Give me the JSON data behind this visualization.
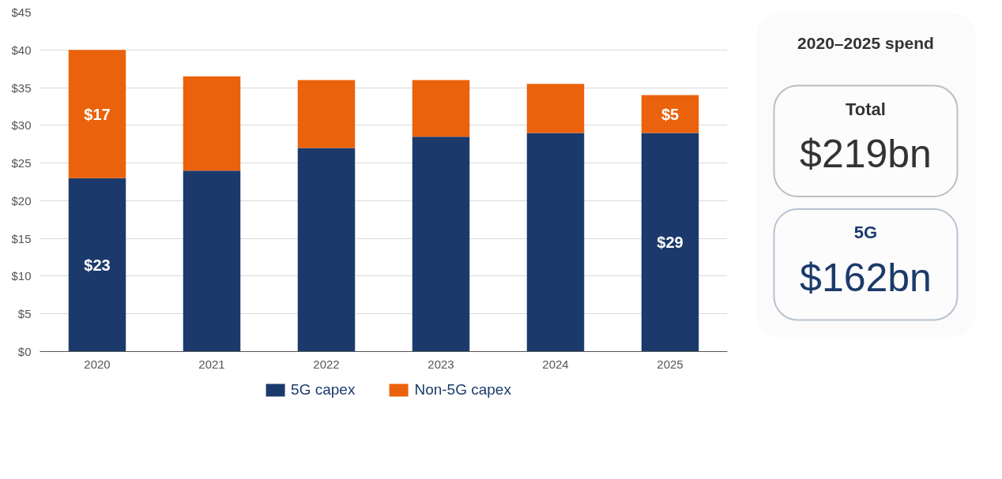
{
  "chart_data": [
    {
      "type": "bar",
      "stacked": true,
      "categories": [
        "2020",
        "2021",
        "2022",
        "2023",
        "2024",
        "2025"
      ],
      "series": [
        {
          "name": "5G capex",
          "color": "#1b3a6b",
          "values": [
            23,
            24,
            27,
            28.5,
            29,
            29
          ],
          "value_labels": [
            "$23",
            null,
            null,
            null,
            null,
            "$29"
          ]
        },
        {
          "name": "Non-5G capex",
          "color": "#ea620b",
          "values": [
            17,
            12.5,
            9,
            7.5,
            6.5,
            5
          ],
          "value_labels": [
            "$17",
            null,
            null,
            null,
            null,
            "$5"
          ]
        }
      ],
      "ylim": [
        0,
        45
      ],
      "yticks": [
        {
          "value": 0,
          "label": "$0"
        },
        {
          "value": 5,
          "label": "$5"
        },
        {
          "value": 10,
          "label": "$10"
        },
        {
          "value": 15,
          "label": "$15"
        },
        {
          "value": 20,
          "label": "$20"
        },
        {
          "value": 25,
          "label": "$25"
        },
        {
          "value": 30,
          "label": "$30"
        },
        {
          "value": 35,
          "label": "$35"
        },
        {
          "value": 40,
          "label": "$40"
        },
        {
          "value": 45,
          "label": "$45"
        }
      ],
      "grid": "y",
      "legend": "bottom"
    },
    {
      "type": "other",
      "title": "2020–2025 spend",
      "categories": [
        "Total",
        "5G"
      ],
      "value_labels": [
        "$219bn",
        "$162bn"
      ],
      "colors": [
        "#333333",
        "#1b3a6b"
      ]
    }
  ]
}
